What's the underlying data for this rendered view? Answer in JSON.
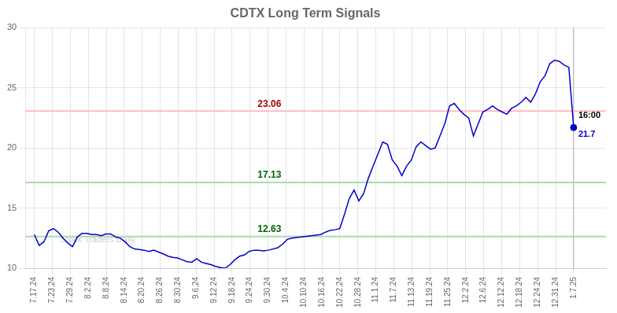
{
  "chart_data": {
    "type": "line",
    "title": "CDTX Long Term Signals",
    "x": [
      0,
      0.2655,
      0.531,
      0.7965,
      1.0619,
      1.3274,
      1.5929,
      1.8584,
      2.1239,
      2.3894,
      2.6549,
      2.9204,
      3.1858,
      3.4513,
      3.7168,
      3.9823,
      4.2478,
      4.5133,
      4.7788,
      5.0442,
      5.3097,
      5.5752,
      5.8407,
      6.1062,
      6.3717,
      6.6372,
      6.9027,
      7.1681,
      7.4336,
      7.6991,
      7.9646,
      8.2301,
      8.4956,
      8.7611,
      9.0265,
      9.292,
      9.5575,
      9.823,
      10.0885,
      10.354,
      10.6195,
      10.885,
      11.1504,
      11.4159,
      11.6814,
      11.9469,
      12.2124,
      12.4779,
      12.7434,
      13.0088,
      13.2743,
      13.5398,
      13.8053,
      14.0708,
      14.3363,
      14.6018,
      14.8673,
      15.1327,
      15.3982,
      15.6637,
      15.9292,
      16.1947,
      16.4602,
      16.7257,
      16.9912,
      17.2566,
      17.5221,
      17.7876,
      18.0531,
      18.3186,
      18.5841,
      18.8496,
      19.115,
      19.3805,
      19.646,
      19.9115,
      20.177,
      20.4425,
      20.708,
      20.9735,
      21.2389,
      21.5044,
      21.7699,
      22.0354,
      22.3009,
      22.5664,
      22.8319,
      23.0973,
      23.3628,
      23.6283,
      23.8938,
      24.1593,
      24.4248,
      24.6903,
      24.9558,
      25.2212,
      25.4867,
      25.7522,
      26.0177,
      26.2832,
      26.5487,
      26.8142,
      27.0796,
      27.3451,
      27.6106,
      27.8761,
      28.1416,
      28.4071,
      28.6726,
      28.9381,
      29.2035,
      29.469,
      29.7345,
      30
    ],
    "values": [
      12.8,
      11.9,
      12.2,
      13.1,
      13.3,
      13.0,
      12.5,
      12.1,
      11.8,
      12.6,
      12.9,
      12.9,
      12.8,
      12.8,
      12.7,
      12.85,
      12.85,
      12.6,
      12.5,
      12.2,
      11.8,
      11.6,
      11.55,
      11.5,
      11.4,
      11.5,
      11.35,
      11.2,
      11.0,
      10.9,
      10.85,
      10.7,
      10.55,
      10.5,
      10.8,
      10.5,
      10.4,
      10.3,
      10.15,
      10.05,
      10.0,
      10.3,
      10.7,
      11.0,
      11.1,
      11.4,
      11.5,
      11.5,
      11.45,
      11.5,
      11.6,
      11.7,
      12.0,
      12.4,
      12.5,
      12.55,
      12.6,
      12.65,
      12.7,
      12.75,
      12.8,
      13.0,
      13.15,
      13.2,
      13.3,
      14.5,
      15.8,
      16.5,
      15.6,
      16.2,
      17.5,
      18.5,
      19.5,
      20.5,
      20.3,
      19.0,
      18.5,
      17.7,
      18.5,
      19.0,
      20.1,
      20.5,
      20.2,
      19.9,
      20.0,
      21.0,
      22.0,
      23.5,
      23.7,
      23.2,
      22.8,
      22.5,
      21.0,
      22.0,
      23.0,
      23.2,
      23.5,
      23.2,
      23.0,
      22.8,
      23.3,
      23.5,
      23.8,
      24.2,
      23.8,
      24.5,
      25.5,
      26.0,
      27.0,
      27.3,
      27.2,
      26.9,
      26.7,
      21.7
    ],
    "color": "#0000cc",
    "xlim": [
      -0.5,
      31.8
    ],
    "xticks": [
      {
        "value": 0,
        "label": "7.17.24"
      },
      {
        "value": 1,
        "label": "7.23.24"
      },
      {
        "value": 2,
        "label": "7.29.24"
      },
      {
        "value": 3,
        "label": "8.2.24"
      },
      {
        "value": 4,
        "label": "8.8.24"
      },
      {
        "value": 5,
        "label": "8.14.24"
      },
      {
        "value": 6,
        "label": "8.20.24"
      },
      {
        "value": 7,
        "label": "8.26.24"
      },
      {
        "value": 8,
        "label": "8.30.24"
      },
      {
        "value": 9,
        "label": "9.6.24"
      },
      {
        "value": 10,
        "label": "9.12.24"
      },
      {
        "value": 11,
        "label": "9.18.24"
      },
      {
        "value": 12,
        "label": "9.24.24"
      },
      {
        "value": 13,
        "label": "9.30.24"
      },
      {
        "value": 14,
        "label": "10.4.24"
      },
      {
        "value": 15,
        "label": "10.10.24"
      },
      {
        "value": 16,
        "label": "10.16.24"
      },
      {
        "value": 17,
        "label": "10.22.24"
      },
      {
        "value": 18,
        "label": "10.28.24"
      },
      {
        "value": 19,
        "label": "11.1.24"
      },
      {
        "value": 20,
        "label": "11.7.24"
      },
      {
        "value": 21,
        "label": "11.13.24"
      },
      {
        "value": 22,
        "label": "11.19.24"
      },
      {
        "value": 23,
        "label": "11.25.24"
      },
      {
        "value": 24,
        "label": "12.2.24"
      },
      {
        "value": 25,
        "label": "12.6.24"
      },
      {
        "value": 26,
        "label": "12.12.24"
      },
      {
        "value": 27,
        "label": "12.18.24"
      },
      {
        "value": 28,
        "label": "12.24.24"
      },
      {
        "value": 29,
        "label": "12.31.24"
      },
      {
        "value": 30,
        "label": "1.7.25"
      }
    ],
    "ylim": [
      10,
      30
    ],
    "yticks": [
      10,
      15,
      20,
      25,
      30
    ],
    "grid": true,
    "hlines": [
      {
        "value": 23.06,
        "label": "23.06",
        "color": "#ffbbbb",
        "label_color": "#aa0000"
      },
      {
        "value": 17.13,
        "label": "17.13",
        "color": "#aaddaa",
        "label_color": "#006600"
      },
      {
        "value": 12.63,
        "label": "12.63",
        "color": "#aaddaa",
        "label_color": "#006600"
      }
    ],
    "last_point": {
      "x": 30,
      "value": 21.7,
      "time_label": "16:00",
      "price_label": "21.7"
    },
    "watermark": "Stock Traders Daily"
  }
}
